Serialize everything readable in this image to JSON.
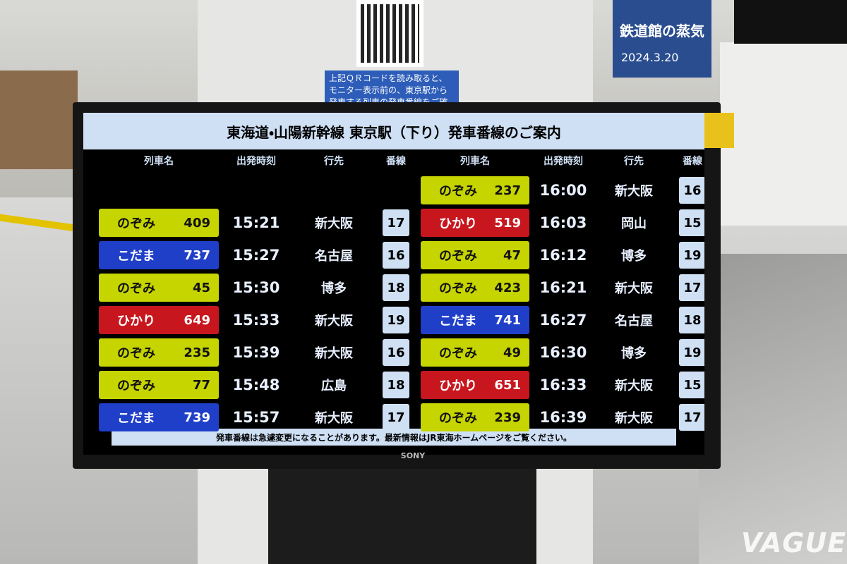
{
  "qr_caption": [
    "上記ＱＲコードを読み取ると、",
    "モニター表示前の、東京駅から",
    "発車する列車の発車番線をご確"
  ],
  "poster": {
    "title": "鉄道館の蒸気",
    "date": "2024.3.20"
  },
  "board": {
    "title": "東海道・山陽新幹線 東京駅（下り）発車番線のご案内",
    "headers": [
      "列車名",
      "出発時刻",
      "行先",
      "番線"
    ],
    "left": [
      {
        "train": "のぞみ",
        "number": "409",
        "time": "15:21",
        "dest": "新大阪",
        "track": "17",
        "color": "#c6d400"
      },
      {
        "train": "こだま",
        "number": "737",
        "time": "15:27",
        "dest": "名古屋",
        "track": "16",
        "color": "#1f3fc8"
      },
      {
        "train": "のぞみ",
        "number": "45",
        "time": "15:30",
        "dest": "博多",
        "track": "18",
        "color": "#c6d400"
      },
      {
        "train": "ひかり",
        "number": "649",
        "time": "15:33",
        "dest": "新大阪",
        "track": "19",
        "color": "#c8161e"
      },
      {
        "train": "のぞみ",
        "number": "235",
        "time": "15:39",
        "dest": "新大阪",
        "track": "16",
        "color": "#c6d400"
      },
      {
        "train": "のぞみ",
        "number": "77",
        "time": "15:48",
        "dest": "広島",
        "track": "18",
        "color": "#c6d400"
      },
      {
        "train": "こだま",
        "number": "739",
        "time": "15:57",
        "dest": "新大阪",
        "track": "17",
        "color": "#1f3fc8"
      }
    ],
    "right": [
      {
        "train": "のぞみ",
        "number": "237",
        "time": "16:00",
        "dest": "新大阪",
        "track": "16",
        "color": "#c6d400"
      },
      {
        "train": "ひかり",
        "number": "519",
        "time": "16:03",
        "dest": "岡山",
        "track": "15",
        "color": "#c8161e"
      },
      {
        "train": "のぞみ",
        "number": "47",
        "time": "16:12",
        "dest": "博多",
        "track": "19",
        "color": "#c6d400"
      },
      {
        "train": "のぞみ",
        "number": "423",
        "time": "16:21",
        "dest": "新大阪",
        "track": "17",
        "color": "#c6d400"
      },
      {
        "train": "こだま",
        "number": "741",
        "time": "16:27",
        "dest": "名古屋",
        "track": "18",
        "color": "#1f3fc8"
      },
      {
        "train": "のぞみ",
        "number": "49",
        "time": "16:30",
        "dest": "博多",
        "track": "19",
        "color": "#c6d400"
      },
      {
        "train": "ひかり",
        "number": "651",
        "time": "16:33",
        "dest": "新大阪",
        "track": "15",
        "color": "#c8161e"
      },
      {
        "train": "のぞみ",
        "number": "239",
        "time": "16:39",
        "dest": "新大阪",
        "track": "17",
        "color": "#c6d400"
      }
    ],
    "footer": "発車番線は急遽変更になることがあります。最新情報はJR東海ホームページをご覧ください。"
  },
  "brand": "SONY",
  "watermark": "VAGUE"
}
